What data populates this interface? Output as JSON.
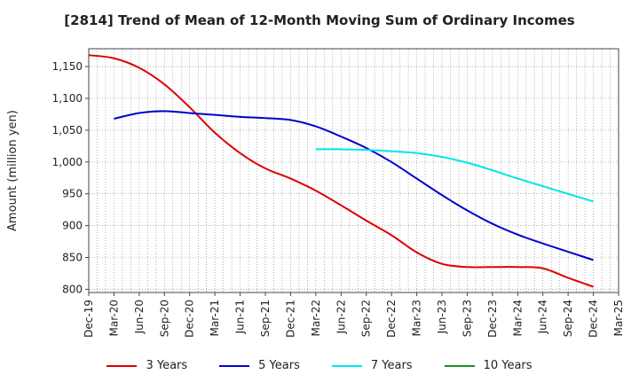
{
  "chart_data": {
    "type": "line",
    "title": "[2814]  Trend of Mean of 12-Month Moving Sum of Ordinary Incomes",
    "xlabel": "",
    "ylabel": "Amount (million yen)",
    "ylim": [
      795,
      1178
    ],
    "yticks": [
      800,
      850,
      900,
      950,
      1000,
      1050,
      1100,
      1150
    ],
    "ytick_labels": [
      "800",
      "850",
      "900",
      "950",
      "1,000",
      "1,050",
      "1,100",
      "1,150"
    ],
    "x_start": "Dec-19",
    "x_tick_labels": [
      "Dec-19",
      "Mar-20",
      "Jun-20",
      "Sep-20",
      "Dec-20",
      "Mar-21",
      "Jun-21",
      "Sep-21",
      "Dec-21",
      "Mar-22",
      "Jun-22",
      "Sep-22",
      "Dec-22",
      "Mar-23",
      "Jun-23",
      "Sep-23",
      "Dec-23",
      "Mar-24",
      "Jun-24",
      "Sep-24",
      "Dec-24",
      "Mar-25"
    ],
    "grid": true,
    "legend_position": "bottom",
    "series": [
      {
        "name": "3 Years",
        "color": "#dd0000",
        "x_index": [
          0,
          3,
          6,
          9,
          12,
          15,
          18,
          21,
          24,
          27,
          30,
          33,
          36,
          39,
          42,
          45,
          48,
          51,
          54,
          57,
          60
        ],
        "values": [
          1168,
          1163,
          1148,
          1122,
          1086,
          1046,
          1014,
          990,
          974,
          955,
          932,
          908,
          885,
          858,
          840,
          835,
          835,
          835,
          833,
          818,
          804
        ]
      },
      {
        "name": "5 Years",
        "color": "#0000cc",
        "x_index": [
          0,
          3,
          6,
          9,
          12,
          15,
          18,
          21,
          24,
          27,
          30,
          33,
          36,
          39,
          42,
          45,
          48,
          51,
          54,
          57,
          60
        ],
        "values": [
          null,
          1068,
          1077,
          1080,
          1077,
          1074,
          1071,
          1069,
          1066,
          1056,
          1040,
          1022,
          1000,
          974,
          948,
          924,
          903,
          886,
          872,
          859,
          846
        ]
      },
      {
        "name": "7 Years",
        "color": "#00e5ee",
        "x_index": [
          0,
          3,
          6,
          9,
          12,
          15,
          18,
          21,
          24,
          27,
          30,
          33,
          36,
          39,
          42,
          45,
          48,
          51,
          54,
          57,
          60
        ],
        "values": [
          null,
          null,
          null,
          null,
          null,
          null,
          null,
          null,
          null,
          1020,
          1020,
          1019,
          1017,
          1014,
          1008,
          999,
          987,
          974,
          962,
          950,
          938
        ]
      },
      {
        "name": "10 Years",
        "color": "#228b22",
        "x_index": [],
        "values": []
      }
    ]
  }
}
